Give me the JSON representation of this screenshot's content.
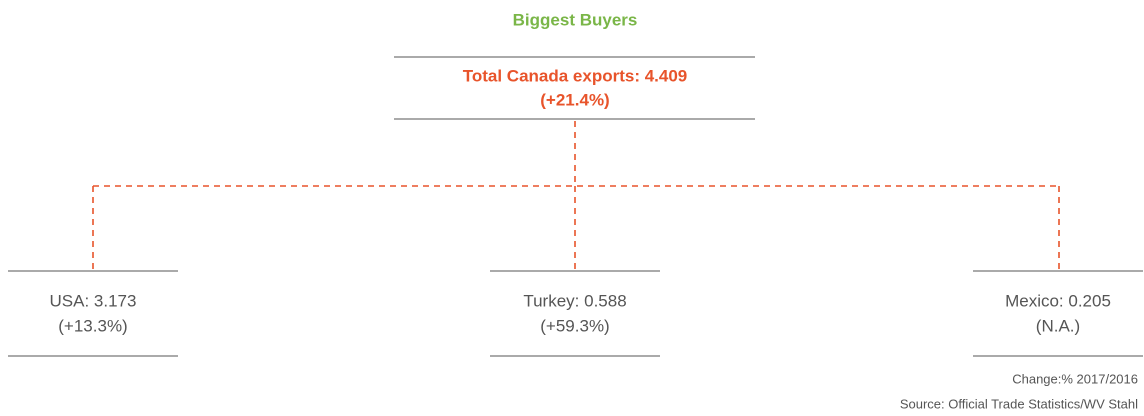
{
  "header": {
    "title": "Biggest Buyers"
  },
  "root": {
    "lines": [
      "Total Canada exports: 4.409",
      "(+21.4%)"
    ]
  },
  "nodes": [
    {
      "label": "USA: 3.173",
      "change": "(+13.3%)"
    },
    {
      "label": "Turkey: 0.588",
      "change": "(+59.3%)"
    },
    {
      "label": "Mexico: 0.205",
      "change": "(N.A.)"
    }
  ],
  "footer": {
    "notes": [
      "Change:% 2017/2016",
      "Source: Official Trade Statistics/WV Stahl"
    ]
  }
}
